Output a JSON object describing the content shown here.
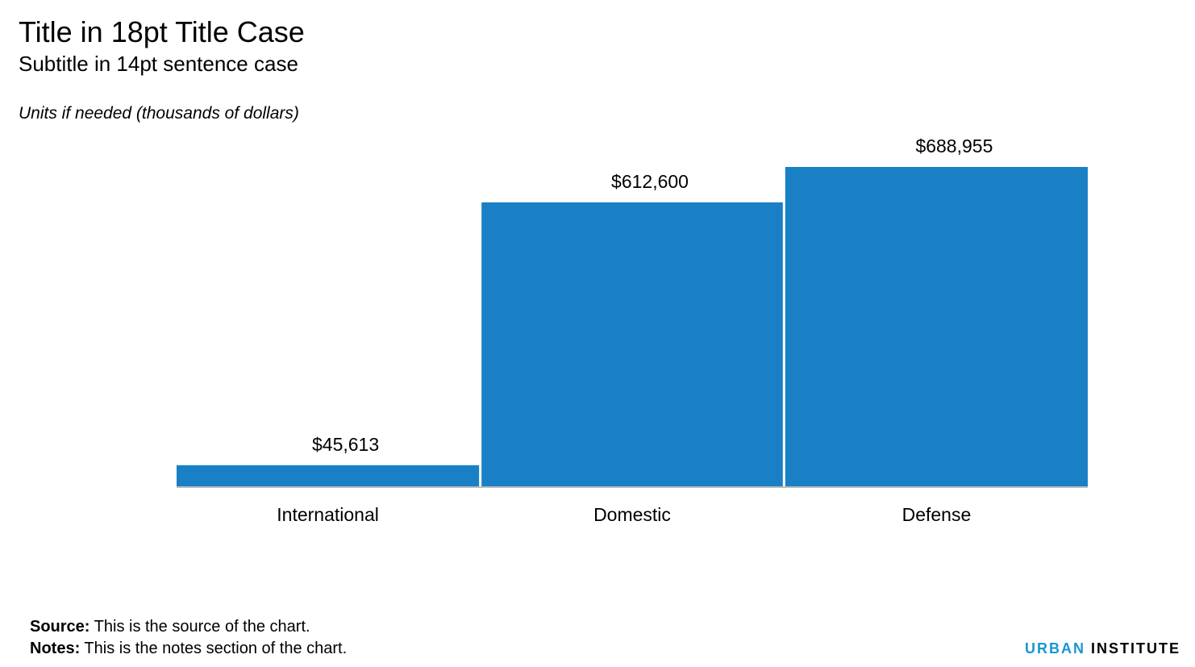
{
  "header": {
    "title": "Title in 18pt Title Case",
    "subtitle": "Subtitle in 14pt sentence case",
    "units": "Units if needed (thousands of dollars)"
  },
  "chart_data": {
    "type": "bar",
    "categories": [
      "International",
      "Domestic",
      "Defense"
    ],
    "values": [
      45613,
      612600,
      688955
    ],
    "value_labels": [
      "$45,613",
      "$612,600",
      "$688,955"
    ],
    "title": "Title in 18pt Title Case",
    "subtitle": "Subtitle in 14pt sentence case",
    "ylabel": "Units if needed (thousands of dollars)",
    "ylim": [
      0,
      688955
    ],
    "grid": false,
    "legend": "none",
    "bar_color": "#1a80c6",
    "axis_color": "#bdbdbd"
  },
  "footer": {
    "source_label": "Source:",
    "source_text": " This is the source of the chart.",
    "notes_label": "Notes:",
    "notes_text": " This is the notes section of the chart."
  },
  "brand": {
    "urban": "URBAN",
    "institute": " INSTITUTE",
    "accent_color": "#1696d2"
  }
}
